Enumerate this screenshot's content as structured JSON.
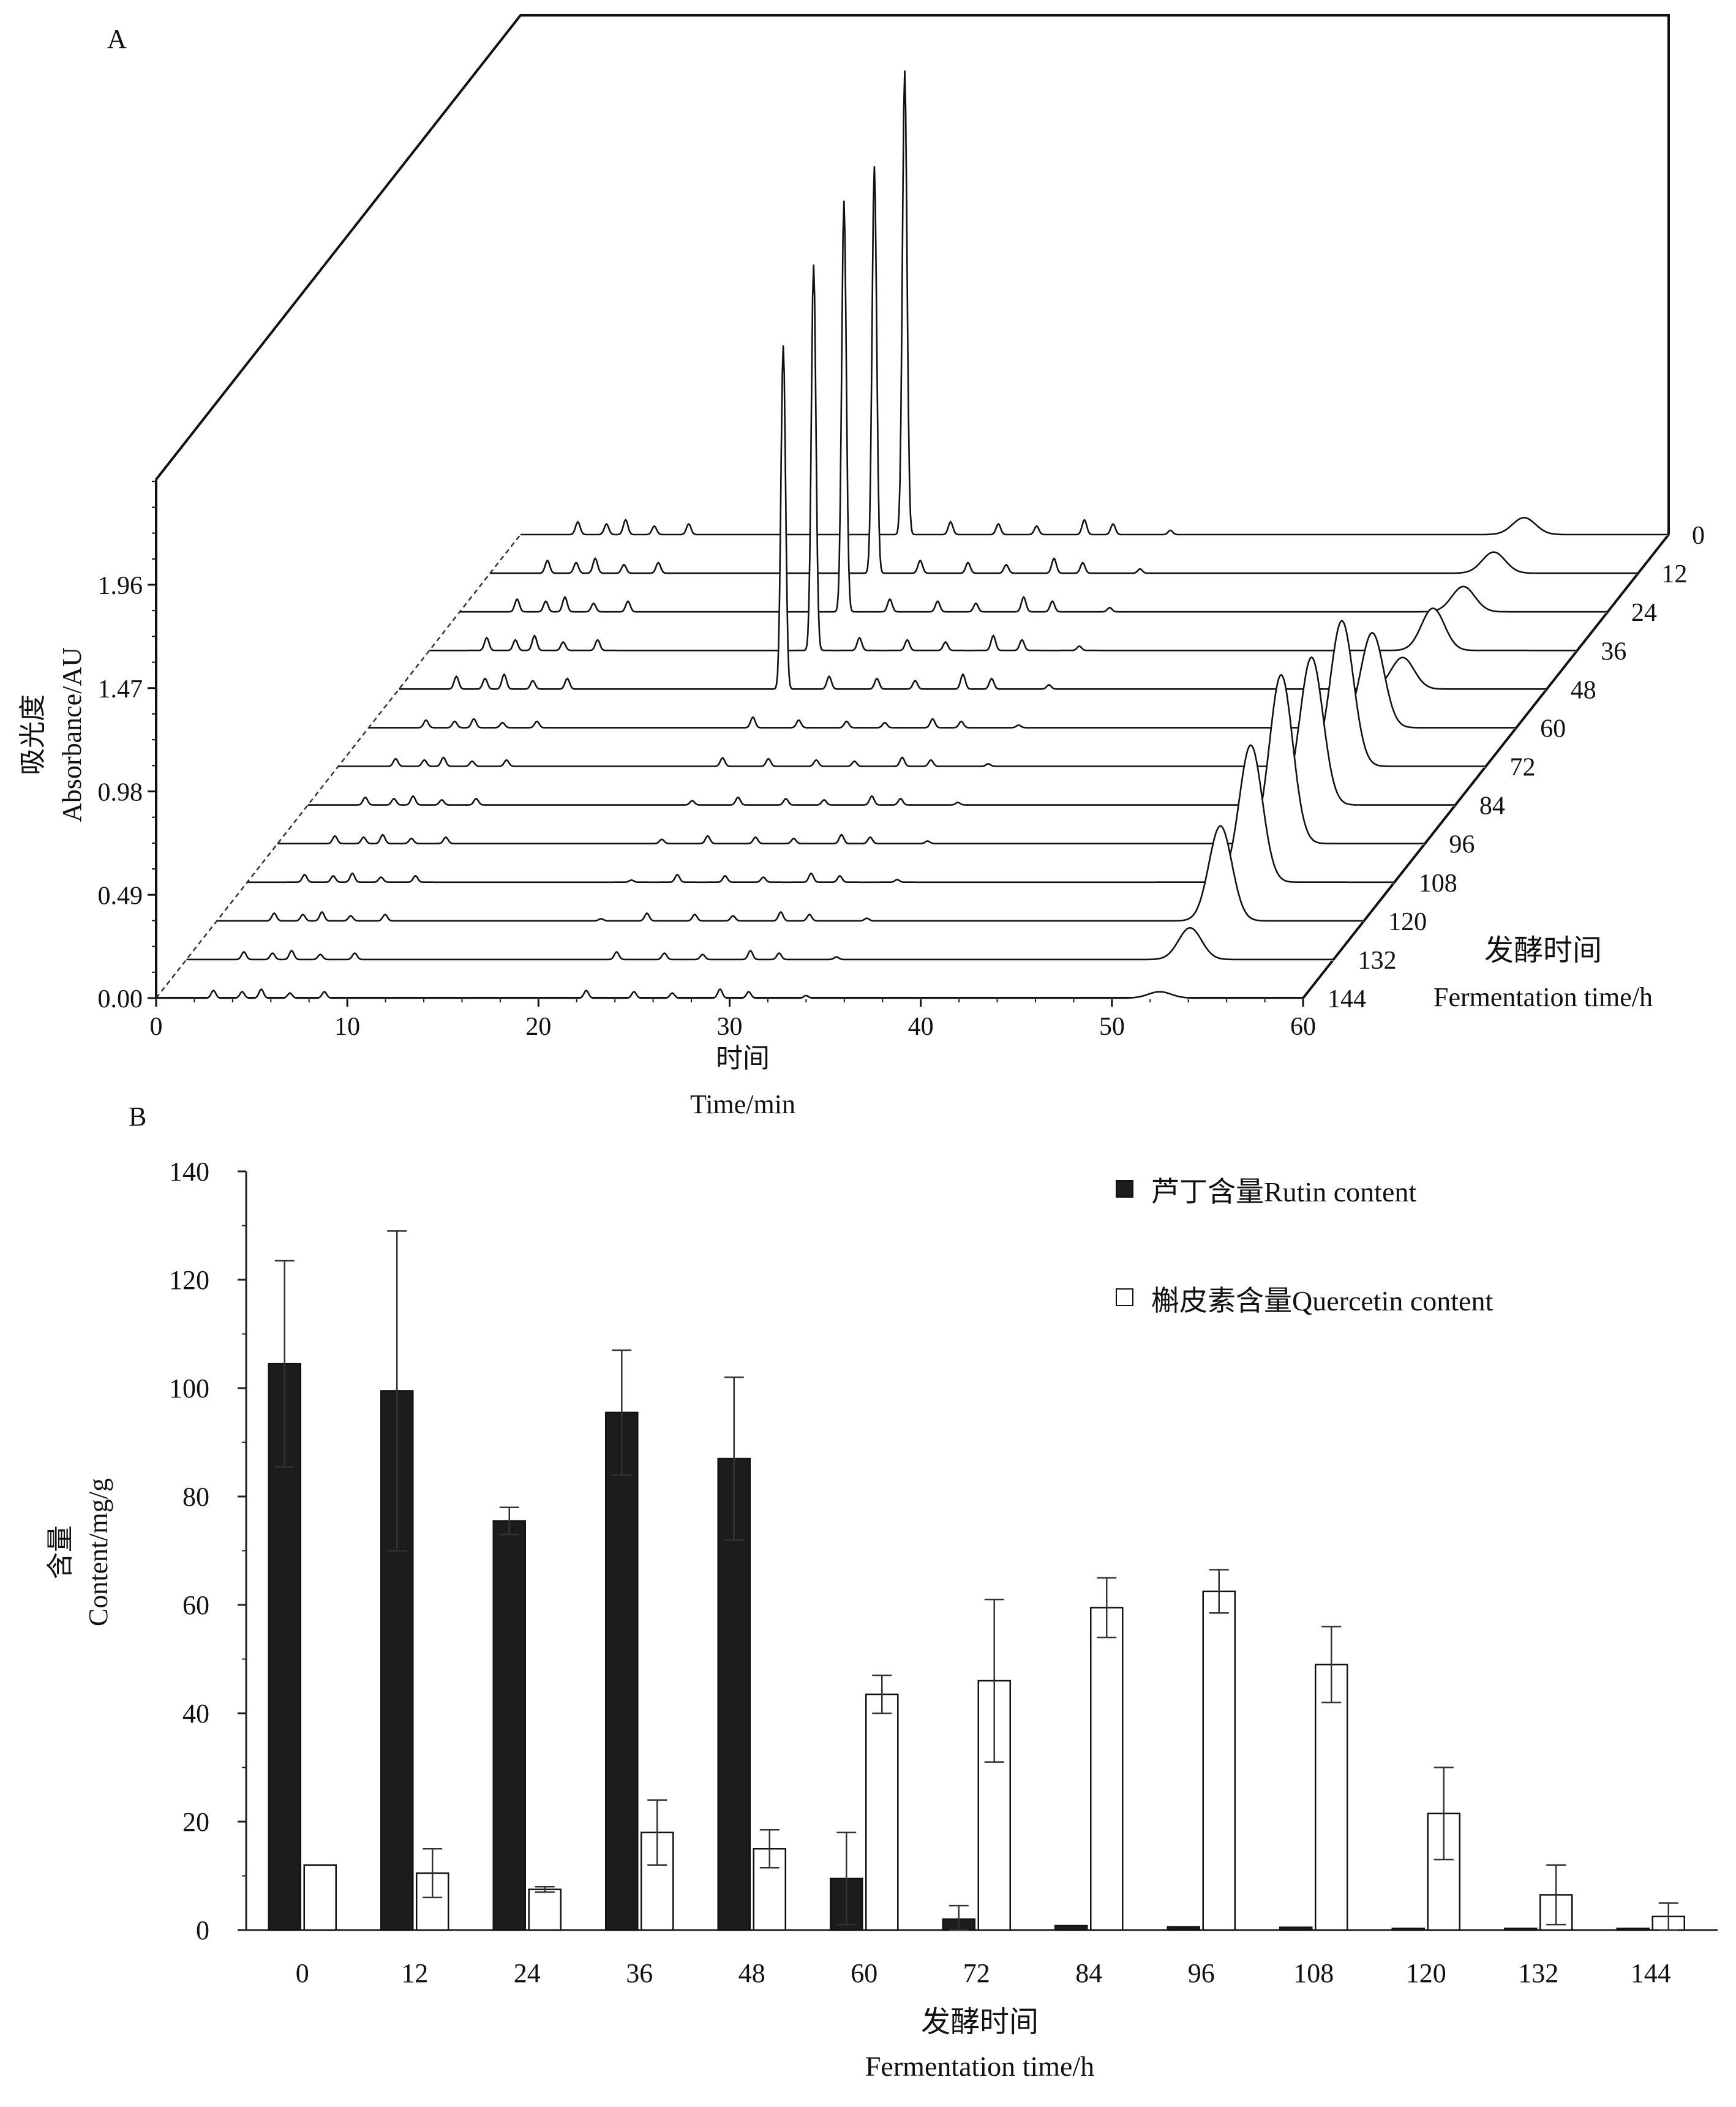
{
  "panel_a": {
    "label": "A",
    "ylabel_cn": "吸光度",
    "ylabel_en": "Absorbance/AU",
    "xlabel_cn": "时间",
    "xlabel_en": "Time/min",
    "zlabel_cn": "发酵时间",
    "zlabel_en": "Fermentation time/h"
  },
  "panel_b": {
    "label": "B",
    "ylabel_cn": "含量",
    "ylabel_en": "Content/mg/g",
    "xlabel_cn": "发酵时间",
    "xlabel_en": "Fermentation time/h",
    "legend_rutin": "芦丁含量Rutin content",
    "legend_quercetin": "槲皮素含量Quercetin content"
  },
  "chart_data": [
    {
      "type": "line",
      "title": "A",
      "xlabel": "时间 Time/min",
      "ylabel": "吸光度 Absorbance/AU",
      "zlabel": "发酵时间 Fermentation time/h",
      "xlim": [
        0,
        60
      ],
      "ylim": [
        0,
        2.45
      ],
      "x_ticks": [
        0,
        10,
        20,
        30,
        40,
        50,
        60
      ],
      "y_ticks": [
        "0.00",
        "0.49",
        "0.98",
        "1.47",
        "1.96"
      ],
      "series_labels": [
        "0",
        "12",
        "24",
        "36",
        "48",
        "60",
        "72",
        "84",
        "96",
        "108",
        "120",
        "132",
        "144"
      ],
      "rutin_peak_time_min": 20.1,
      "rutin_peak_abs": [
        2.2,
        1.93,
        1.95,
        1.83,
        1.63,
        0.05,
        0.04,
        0.02,
        0.02,
        0.01,
        0.01,
        0,
        0
      ],
      "quercetin_peak_time_min": 52.5,
      "quercetin_peak_abs": [
        0.08,
        0.1,
        0.12,
        0.2,
        0.15,
        0.45,
        0.69,
        0.7,
        0.8,
        0.65,
        0.45,
        0.15,
        0.03
      ]
    },
    {
      "type": "bar",
      "title": "B",
      "xlabel": "发酵时间 Fermentation time/h",
      "ylabel": "含量 Content/mg/g",
      "ylim": [
        0,
        140
      ],
      "y_ticks": [
        0,
        20,
        40,
        60,
        80,
        100,
        120,
        140
      ],
      "categories": [
        "0",
        "12",
        "24",
        "36",
        "48",
        "60",
        "72",
        "84",
        "96",
        "108",
        "120",
        "132",
        "144"
      ],
      "series": [
        {
          "name": "芦丁含量Rutin content",
          "fill": "#1e1c1a",
          "values": [
            104.5,
            99.5,
            75.5,
            95.5,
            87.0,
            9.5,
            2.0,
            0.8,
            0.6,
            0.5,
            0.3,
            0.3,
            0.3
          ],
          "errors": [
            19.0,
            29.5,
            2.5,
            11.5,
            15.0,
            8.5,
            2.5,
            0,
            0,
            0,
            0,
            0,
            0
          ]
        },
        {
          "name": "槲皮素含量Quercetin content",
          "fill": "#ffffff",
          "values": [
            12.0,
            10.5,
            7.5,
            18.0,
            15.0,
            43.5,
            46.0,
            59.5,
            62.5,
            49.0,
            21.5,
            6.5,
            2.5
          ],
          "errors": [
            0,
            4.5,
            0.5,
            6.0,
            3.5,
            3.5,
            15.0,
            5.5,
            4.0,
            7.0,
            8.5,
            5.5,
            2.5
          ]
        }
      ]
    }
  ]
}
